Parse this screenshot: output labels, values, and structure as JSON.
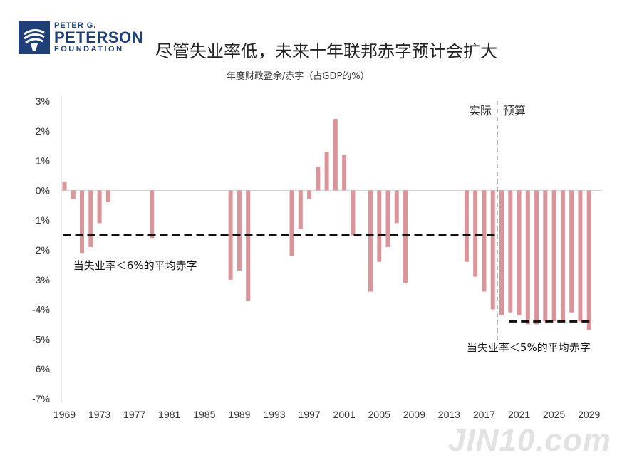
{
  "logo": {
    "line1": "PETER G.",
    "line2": "PETERSON",
    "line3": "FOUNDATION"
  },
  "title": "尽管失业率低，未来十年联邦赤字预计会扩大",
  "watermark": "JIN10.com",
  "chart_data": {
    "type": "bar",
    "title": "尽管失业率低，未来十年联邦赤字预计会扩大",
    "subtitle": "年度财政盈余/赤字（占GDP的%）",
    "ylim": [
      -7,
      3
    ],
    "yticks": [
      3,
      2,
      1,
      0,
      -1,
      -2,
      -3,
      -4,
      -5,
      -6,
      -7
    ],
    "ytick_labels": [
      "3%",
      "2%",
      "1%",
      "0%",
      "-1%",
      "-2%",
      "-3%",
      "-4%",
      "-5%",
      "-6%",
      "-7%"
    ],
    "xlim": [
      1969,
      2029
    ],
    "xtick_labels": [
      "1969",
      "1973",
      "1977",
      "1981",
      "1985",
      "1989",
      "1993",
      "1997",
      "2001",
      "2005",
      "2009",
      "2013",
      "2017",
      "2021",
      "2025",
      "2029"
    ],
    "bar_color": "#d9959a",
    "series": [
      {
        "type": "bar",
        "points": [
          {
            "x": 1969,
            "y": 0.3
          },
          {
            "x": 1970,
            "y": -0.3
          },
          {
            "x": 1971,
            "y": -2.1
          },
          {
            "x": 1972,
            "y": -1.9
          },
          {
            "x": 1973,
            "y": -1.1
          },
          {
            "x": 1974,
            "y": -0.4
          },
          {
            "x": 1979,
            "y": -1.6
          },
          {
            "x": 1988,
            "y": -3.0
          },
          {
            "x": 1989,
            "y": -2.7
          },
          {
            "x": 1990,
            "y": -3.7
          },
          {
            "x": 1995,
            "y": -2.2
          },
          {
            "x": 1996,
            "y": -1.3
          },
          {
            "x": 1997,
            "y": -0.3
          },
          {
            "x": 1998,
            "y": 0.8
          },
          {
            "x": 1999,
            "y": 1.3
          },
          {
            "x": 2000,
            "y": 2.4
          },
          {
            "x": 2001,
            "y": 1.2
          },
          {
            "x": 2002,
            "y": -1.5
          },
          {
            "x": 2004,
            "y": -3.4
          },
          {
            "x": 2005,
            "y": -2.4
          },
          {
            "x": 2006,
            "y": -1.9
          },
          {
            "x": 2007,
            "y": -1.1
          },
          {
            "x": 2008,
            "y": -3.1
          },
          {
            "x": 2015,
            "y": -2.4
          },
          {
            "x": 2016,
            "y": -2.9
          },
          {
            "x": 2017,
            "y": -3.4
          },
          {
            "x": 2018,
            "y": -4.0
          },
          {
            "x": 2019,
            "y": -4.2
          },
          {
            "x": 2020,
            "y": -4.1
          },
          {
            "x": 2021,
            "y": -4.2
          },
          {
            "x": 2022,
            "y": -4.5
          },
          {
            "x": 2023,
            "y": -4.5
          },
          {
            "x": 2024,
            "y": -4.4
          },
          {
            "x": 2025,
            "y": -4.4
          },
          {
            "x": 2026,
            "y": -4.4
          },
          {
            "x": 2027,
            "y": -4.1
          },
          {
            "x": 2028,
            "y": -4.4
          },
          {
            "x": 2029,
            "y": -4.7
          }
        ]
      }
    ],
    "reference_lines": [
      {
        "y": -1.5,
        "x_start": 1969,
        "x_end": 2018,
        "label": "当失业率＜6%的平均赤字",
        "label_anchor": {
          "x": 1970,
          "y": -2.65
        }
      },
      {
        "y": -4.4,
        "x_start": 2020,
        "x_end": 2029,
        "label": "当失业率＜5%的平均赤字",
        "label_anchor": {
          "x": 2015,
          "y": -5.4
        }
      }
    ],
    "divider": {
      "x": 2018.5,
      "label_left": "实际",
      "label_right": "预算"
    }
  }
}
